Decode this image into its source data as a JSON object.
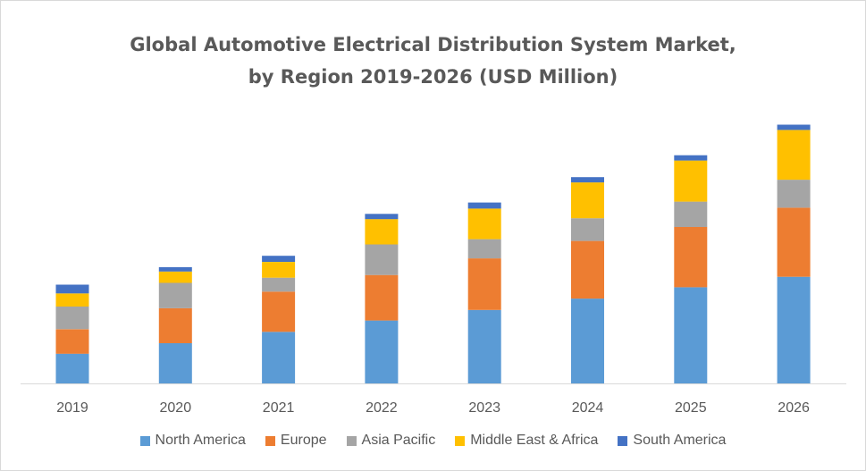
{
  "chart_data": {
    "type": "bar",
    "stacked": true,
    "title": "Global Automotive Electrical Distribution System Market, by Region 2019-2026 (USD Million)",
    "title_lines": [
      "Global Automotive Electrical Distribution System Market,",
      "by Region 2019-2026 (USD Million)"
    ],
    "xlabel": "",
    "ylabel": "",
    "grid": false,
    "legend_position": "bottom",
    "categories": [
      "2019",
      "2020",
      "2021",
      "2022",
      "2023",
      "2024",
      "2025",
      "2026"
    ],
    "series": [
      {
        "name": "North America",
        "color": "#5b9bd5",
        "values": [
          34,
          46,
          59,
          72,
          84,
          97,
          110,
          122
        ]
      },
      {
        "name": "Europe",
        "color": "#ed7d31",
        "values": [
          28,
          40,
          46,
          52,
          59,
          66,
          69,
          79
        ]
      },
      {
        "name": "Asia Pacific",
        "color": "#a5a5a5",
        "values": [
          26,
          29,
          16,
          35,
          22,
          26,
          29,
          32
        ]
      },
      {
        "name": "Middle East & Africa",
        "color": "#ffc000",
        "values": [
          15,
          13,
          18,
          29,
          35,
          41,
          47,
          57
        ]
      },
      {
        "name": "South America",
        "color": "#4472c4",
        "values": [
          10,
          5,
          7,
          6,
          7,
          6,
          6,
          6
        ]
      }
    ]
  }
}
